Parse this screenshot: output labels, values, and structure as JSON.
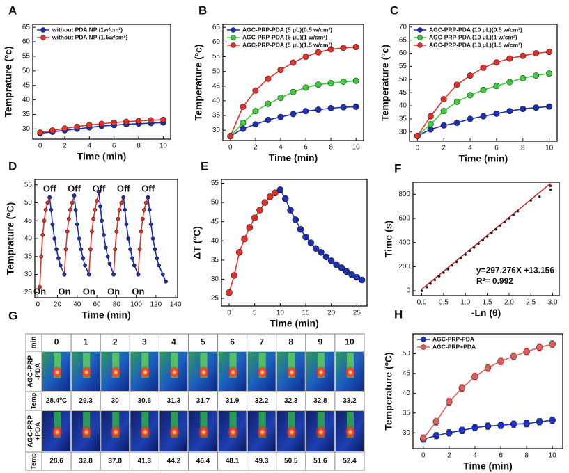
{
  "chart_data": [
    {
      "panel": "A",
      "type": "line",
      "x": [
        0,
        1,
        2,
        3,
        4,
        5,
        6,
        7,
        8,
        9,
        10
      ],
      "xlabel": "Time (min)",
      "ylabel": "Temprature (ºc)",
      "xlim": [
        -0.6,
        10.6
      ],
      "xticks": [
        0,
        2,
        4,
        6,
        8,
        10
      ],
      "ylim": [
        26.5,
        66
      ],
      "yticks": [
        30,
        35,
        40,
        45,
        50,
        55,
        60,
        65
      ],
      "legend": "upper left",
      "series": [
        {
          "name": "without PDA NP (1w/cm²)",
          "color": "#1c2fb0",
          "values": [
            28.5,
            29,
            29.5,
            30,
            30.5,
            31,
            31.3,
            31.6,
            31.8,
            32,
            32.2
          ]
        },
        {
          "name": "without PDA NP (1.5w/cm²)",
          "color": "#e3302b",
          "values": [
            28.8,
            29.5,
            30.2,
            30.8,
            31.4,
            31.8,
            32.2,
            32.5,
            32.8,
            33,
            33.2
          ]
        }
      ]
    },
    {
      "panel": "B",
      "type": "line",
      "x": [
        0,
        1,
        2,
        3,
        4,
        5,
        6,
        7,
        8,
        9,
        10
      ],
      "xlabel": "Time (min)",
      "ylabel": "Temperature (ºc)",
      "xlim": [
        -0.6,
        10.6
      ],
      "xticks": [
        0,
        2,
        4,
        6,
        8,
        10
      ],
      "ylim": [
        26.5,
        66
      ],
      "yticks": [
        30,
        35,
        40,
        45,
        50,
        55,
        60,
        65
      ],
      "legend": "upper left",
      "series": [
        {
          "name": "AGC-PRP-PDA (5 μL)(0.5 w/cm²)",
          "color": "#1c2fb0",
          "values": [
            28,
            30.5,
            32,
            33.5,
            34.5,
            35.5,
            36.5,
            37,
            37.5,
            37.8,
            38
          ]
        },
        {
          "name": "AGC-PRP-PDA (5 μL)(1 w/cm²)",
          "color": "#3ccc3c",
          "values": [
            28,
            32.5,
            36.5,
            39,
            41,
            43,
            44.5,
            45.5,
            46,
            46.5,
            46.8
          ]
        },
        {
          "name": "AGC-PRP-PDA (5 μL)(1.5 w/cm²)",
          "color": "#e3302b",
          "values": [
            28,
            38,
            43.5,
            47.5,
            50.5,
            53,
            55,
            56.5,
            57.5,
            58,
            58.3
          ]
        }
      ]
    },
    {
      "panel": "C",
      "type": "line",
      "x": [
        0,
        1,
        2,
        3,
        4,
        5,
        6,
        7,
        8,
        9,
        10
      ],
      "xlabel": "Time (min)",
      "ylabel": "Temperature (ºc)",
      "xlim": [
        -0.6,
        10.6
      ],
      "xticks": [
        0,
        2,
        4,
        6,
        8,
        10
      ],
      "ylim": [
        26.5,
        71
      ],
      "yticks": [
        30,
        35,
        40,
        45,
        50,
        55,
        60,
        65,
        70
      ],
      "legend": "upper left",
      "series": [
        {
          "name": "AGC-PRP-PDA (10 μL)(0.5 w/cm²)",
          "color": "#1c2fb0",
          "values": [
            28.5,
            31,
            32.5,
            33.5,
            35,
            36,
            37,
            38,
            38.8,
            39.3,
            39.7
          ]
        },
        {
          "name": "AGC-PRP-PDA (10 μL)(1 w/cm²)",
          "color": "#3ccc3c",
          "values": [
            28.5,
            33,
            38,
            41.5,
            44,
            46,
            47.5,
            49,
            50.5,
            51.5,
            52.3
          ]
        },
        {
          "name": "AGC-PRP-PDA (10 μL)(1.5 w/cm²)",
          "color": "#e3302b",
          "values": [
            28.5,
            36,
            42.5,
            48,
            51.5,
            54.5,
            56.5,
            58,
            59,
            60,
            60.5
          ]
        }
      ]
    },
    {
      "panel": "D",
      "type": "line",
      "xlabel": "Time (min)",
      "ylabel": "Temprature (ºC)",
      "xlim": [
        -3,
        142
      ],
      "xticks": [
        0,
        20,
        40,
        60,
        80,
        100,
        120,
        140
      ],
      "ylim": [
        23.5,
        56.5
      ],
      "yticks": [
        25,
        30,
        35,
        40,
        45,
        50,
        55
      ],
      "series": [
        {
          "color": "#e3302b",
          "x": [
            2,
            3.5,
            5,
            6.5,
            8,
            10,
            12,
            null,
            27,
            28.5,
            30,
            31.5,
            33,
            35,
            37,
            null,
            52,
            53.5,
            55,
            56.5,
            58,
            60,
            62,
            null,
            77,
            78.5,
            80,
            81.5,
            83,
            85,
            87,
            null,
            102,
            103.5,
            105,
            106.5,
            108,
            110,
            112
          ],
          "values": [
            26.5,
            35,
            41,
            45,
            48,
            50,
            51.5,
            null,
            30,
            37,
            42,
            45.5,
            48,
            50,
            52,
            null,
            30,
            37,
            42,
            45.5,
            48,
            50.5,
            53,
            null,
            30,
            37,
            42,
            45.5,
            48,
            50,
            51.5,
            null,
            30,
            37,
            42,
            45.5,
            48,
            50,
            51.5
          ]
        },
        {
          "color": "#1c2fb0",
          "x": [
            12,
            13.5,
            15,
            17,
            19,
            21,
            23,
            27,
            null,
            37,
            38.5,
            40,
            42,
            44,
            46,
            48,
            52,
            null,
            62,
            63.5,
            65,
            67,
            69,
            71,
            73,
            77,
            null,
            87,
            88.5,
            90,
            92,
            94,
            96,
            98,
            102,
            null,
            112,
            113.5,
            115,
            117,
            119,
            121,
            123,
            127,
            130
          ],
          "values": [
            51.5,
            48,
            44,
            40,
            37,
            34.5,
            32.5,
            30,
            null,
            52,
            48,
            44,
            40,
            37,
            34.5,
            32.5,
            30,
            null,
            53,
            49,
            45,
            41,
            37.5,
            35,
            33,
            30,
            null,
            51.5,
            48,
            44,
            40,
            37,
            34.5,
            32.5,
            30,
            null,
            51.5,
            48,
            44,
            40,
            37,
            34.5,
            32.5,
            30,
            28
          ]
        }
      ],
      "annotations": [
        {
          "text": "Off",
          "x": 12,
          "y": 53.8
        },
        {
          "text": "Off",
          "x": 37,
          "y": 53.8
        },
        {
          "text": "Off",
          "x": 62,
          "y": 53.8
        },
        {
          "text": "Off",
          "x": 87,
          "y": 53.8
        },
        {
          "text": "Off",
          "x": 112,
          "y": 53.8
        },
        {
          "text": "On",
          "x": 2,
          "y": 25
        },
        {
          "text": "On",
          "x": 27,
          "y": 25
        },
        {
          "text": "On",
          "x": 52,
          "y": 25
        },
        {
          "text": "On",
          "x": 77,
          "y": 25
        },
        {
          "text": "On",
          "x": 102,
          "y": 25
        }
      ]
    },
    {
      "panel": "E",
      "type": "line",
      "xlabel": "Time (min)",
      "ylabel": "ΔT (°C)",
      "xlim": [
        -1.5,
        27
      ],
      "xticks": [
        0,
        5,
        10,
        15,
        20,
        25
      ],
      "ylim": [
        23,
        56
      ],
      "yticks": [
        25,
        30,
        35,
        40,
        45,
        50,
        55
      ],
      "series": [
        {
          "color": "#e3302b",
          "x": [
            0,
            1,
            2,
            3,
            4,
            5,
            6,
            7,
            8,
            9,
            10
          ],
          "values": [
            26.5,
            31,
            37,
            40.5,
            43.5,
            46,
            48,
            50,
            51.5,
            52.5,
            53.3
          ]
        },
        {
          "color": "#1c2fb0",
          "x": [
            10,
            11,
            12,
            13,
            14,
            15,
            16,
            17,
            18,
            19,
            20,
            21,
            22,
            23,
            24,
            25,
            26
          ],
          "values": [
            53.3,
            51,
            48,
            45.5,
            43,
            41,
            39.5,
            38,
            37,
            35.8,
            34.8,
            33.8,
            33,
            32,
            31.2,
            30.5,
            29.8
          ]
        }
      ]
    },
    {
      "panel": "F",
      "type": "scatter",
      "xlabel": "-Ln (θ)",
      "ylabel": "Time (s)",
      "xlim": [
        -0.2,
        3.15
      ],
      "xticks": [
        {
          "value": 0,
          "label": "0.0"
        },
        {
          "value": 0.5,
          "label": "0.5"
        },
        {
          "value": 1,
          "label": "1.0"
        },
        {
          "value": 1.5,
          "label": "1.5"
        },
        {
          "value": 2,
          "label": "2.0"
        },
        {
          "value": 2.5,
          "label": "2.5"
        },
        {
          "value": 3,
          "label": "3.0"
        }
      ],
      "ylim": [
        -40,
        900
      ],
      "yticks": [
        0,
        200,
        400,
        600,
        800
      ],
      "series": [
        {
          "color": "#222222",
          "x": [
            0,
            0.12,
            0.2,
            0.3,
            0.4,
            0.5,
            0.6,
            0.7,
            0.8,
            0.9,
            1.0,
            1.1,
            1.2,
            1.3,
            1.4,
            1.5,
            1.6,
            1.7,
            1.8,
            1.9,
            2.0,
            2.1,
            2.2,
            2.5,
            2.7,
            2.95,
            2.95
          ],
          "values": [
            0,
            30,
            60,
            90,
            120,
            150,
            180,
            210,
            240,
            270,
            300,
            330,
            360,
            390,
            420,
            450,
            480,
            510,
            540,
            570,
            600,
            630,
            660,
            750,
            780,
            840,
            870
          ]
        }
      ],
      "fit": {
        "slope": 297.276,
        "intercept": 13.156,
        "color": "#d62020"
      },
      "annotations": [
        {
          "text": "y=297.276X +13.156",
          "x": 1.25,
          "y": 165
        },
        {
          "text": "R²= 0.992",
          "x": 1.25,
          "y": 75
        }
      ]
    },
    {
      "panel": "H",
      "type": "line",
      "x": [
        0,
        1,
        2,
        3,
        4,
        5,
        6,
        7,
        8,
        9,
        10
      ],
      "xlabel": "Time (min)",
      "ylabel": "Temperature (ºC)",
      "xlim": [
        -0.8,
        10.8
      ],
      "xticks": [
        0,
        2,
        4,
        6,
        8,
        10
      ],
      "ylim": [
        26,
        55
      ],
      "yticks": [
        30,
        35,
        40,
        45,
        50
      ],
      "legend": "upper left",
      "series": [
        {
          "name": "AGC-PRP-PDA",
          "color": "#1c2fc8",
          "values": [
            28.4,
            29.3,
            30,
            30.6,
            31.3,
            31.7,
            31.9,
            32.2,
            32.3,
            32.8,
            33.2
          ],
          "errors": [
            0.8,
            0.8,
            0.8,
            0.8,
            0.8,
            0.8,
            0.8,
            0.8,
            0.8,
            0.8,
            0.8
          ]
        },
        {
          "name": "AGC-PRP+PDA",
          "color": "#e0605a",
          "values": [
            28.6,
            32.8,
            37.8,
            41.3,
            44.2,
            46.4,
            48.1,
            49.3,
            50.5,
            51.6,
            52.4
          ],
          "errors": [
            0.9,
            0.9,
            0.9,
            0.9,
            0.9,
            0.9,
            0.9,
            0.9,
            0.9,
            0.9,
            0.9
          ]
        }
      ]
    }
  ],
  "thermal_table": {
    "panel": "G",
    "header_label": "min",
    "columns": [
      0,
      1,
      2,
      3,
      4,
      5,
      6,
      7,
      8,
      9,
      10
    ],
    "rows": [
      {
        "label": [
          "AGC-PRP",
          "-PDA"
        ],
        "temp_label": "Temp",
        "temps": [
          "28.4ºC",
          29.3,
          30,
          30.6,
          31.3,
          31.7,
          31.9,
          32.2,
          32.3,
          32.8,
          33.2
        ]
      },
      {
        "label": [
          "AGC-PRP",
          "+PDA"
        ],
        "temp_label": "Temp",
        "temps": [
          28.6,
          32.8,
          37.8,
          41.3,
          44.2,
          46.4,
          48.1,
          49.3,
          50.5,
          51.6,
          52.4
        ]
      }
    ]
  }
}
